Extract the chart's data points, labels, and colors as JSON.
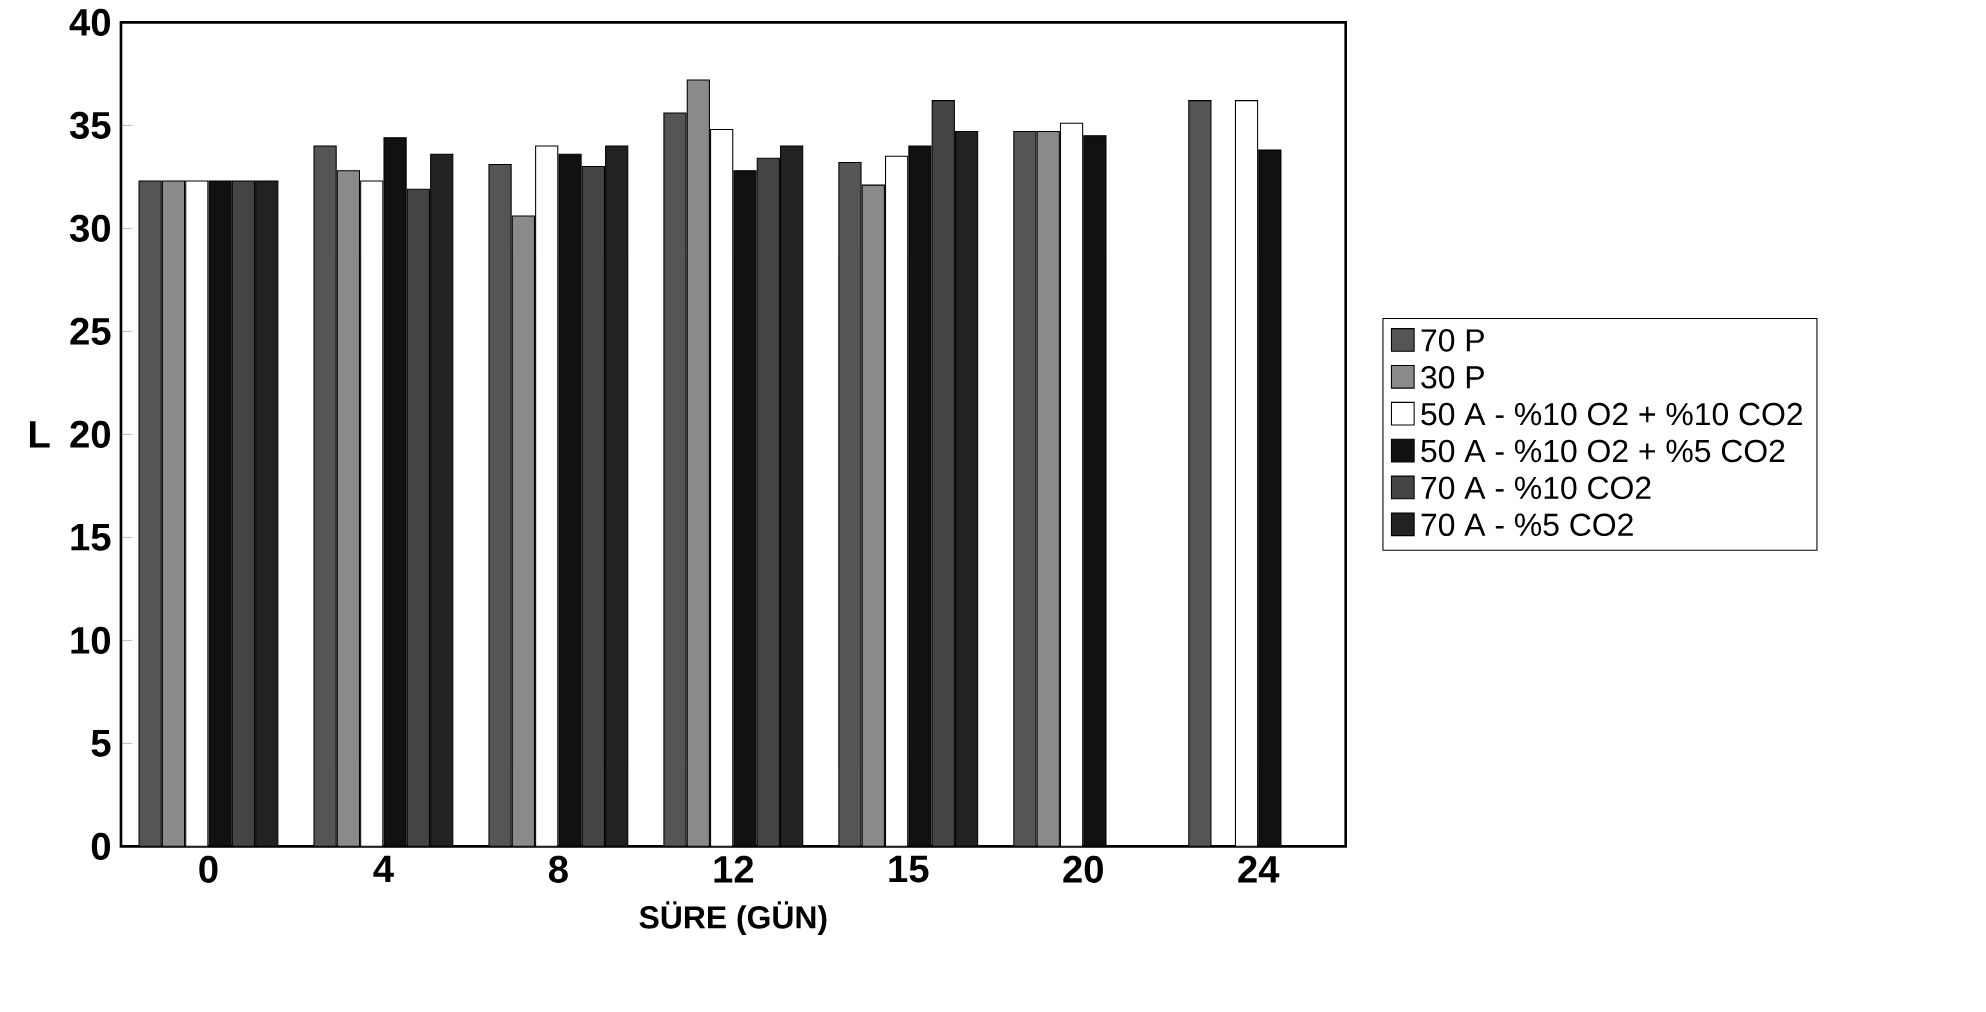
{
  "chart_data": {
    "type": "bar",
    "xlabel": "SÜRE (GÜN)",
    "ylabel": "L",
    "categories": [
      "0",
      "4",
      "8",
      "12",
      "15",
      "20",
      "24"
    ],
    "ylim": [
      0,
      40
    ],
    "yticks": [
      0,
      5,
      10,
      15,
      20,
      25,
      30,
      35,
      40
    ],
    "grid": false,
    "legend": "right",
    "series": [
      {
        "name": "70 P",
        "color": "#555555",
        "values": [
          32.3,
          34.0,
          33.1,
          35.6,
          33.2,
          34.7,
          36.2
        ]
      },
      {
        "name": "30 P",
        "color": "#8a8a8a",
        "values": [
          32.3,
          32.8,
          30.6,
          37.2,
          32.1,
          34.7,
          null
        ]
      },
      {
        "name": "50 A - %10 O2 + %10 CO2",
        "color": "#ffffff",
        "values": [
          32.3,
          32.3,
          34.0,
          34.8,
          33.5,
          35.1,
          36.2
        ]
      },
      {
        "name": "50 A - %10 O2 + %5 CO2",
        "color": "#111111",
        "values": [
          32.3,
          34.4,
          33.6,
          32.8,
          34.0,
          34.5,
          33.8
        ]
      },
      {
        "name": "70 A - %10 CO2",
        "color": "#444444",
        "values": [
          32.3,
          31.9,
          33.0,
          33.4,
          36.2,
          null,
          null
        ]
      },
      {
        "name": "70 A - %5 CO2",
        "color": "#222222",
        "values": [
          32.3,
          33.6,
          34.0,
          34.0,
          34.7,
          null,
          null
        ]
      }
    ]
  }
}
